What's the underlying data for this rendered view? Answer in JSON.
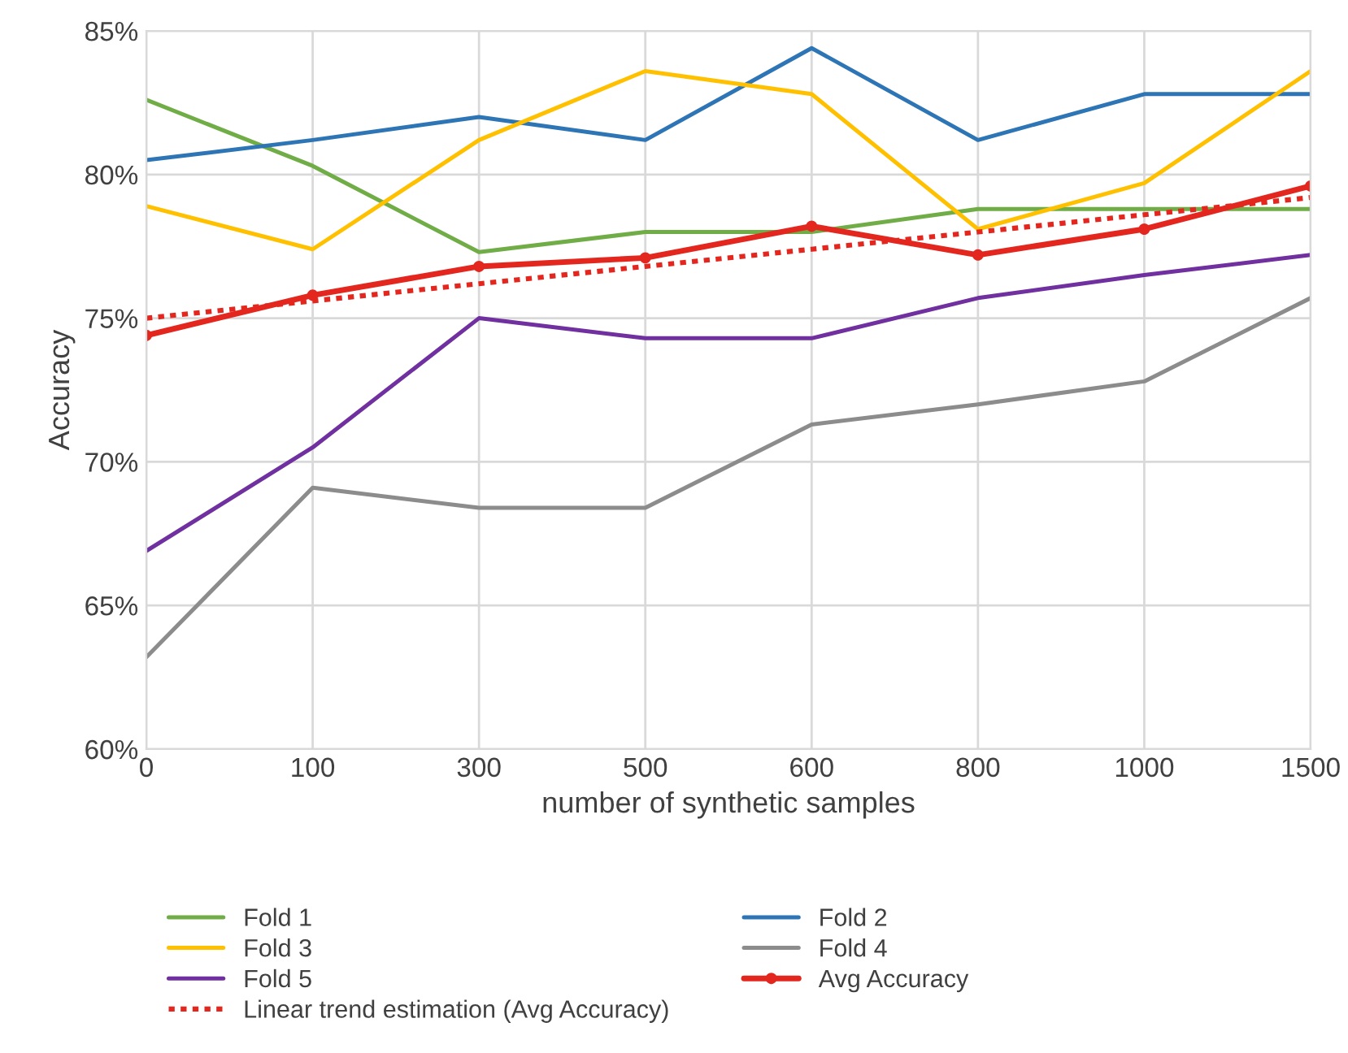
{
  "chart_data": {
    "type": "line",
    "xlabel": "number of synthetic samples",
    "ylabel": "Accuracy",
    "categories": [
      "0",
      "100",
      "300",
      "500",
      "600",
      "800",
      "1000",
      "1500"
    ],
    "ylim": [
      60,
      85
    ],
    "yticks": [
      {
        "value": 60,
        "label": "60%"
      },
      {
        "value": 65,
        "label": "65%"
      },
      {
        "value": 70,
        "label": "70%"
      },
      {
        "value": 75,
        "label": "75%"
      },
      {
        "value": 80,
        "label": "80%"
      },
      {
        "value": 85,
        "label": "85%"
      }
    ],
    "grid": true,
    "legend": "bottom",
    "marker": "none",
    "line_style": "solid",
    "series": [
      {
        "name": "Fold 1",
        "color": "#70ad47",
        "values": [
          82.6,
          80.3,
          77.3,
          78.0,
          78.0,
          78.8,
          78.8,
          78.8
        ]
      },
      {
        "name": "Fold 2",
        "color": "#2e75b6",
        "values": [
          80.5,
          81.2,
          82.0,
          81.2,
          84.4,
          81.2,
          82.8,
          82.8
        ]
      },
      {
        "name": "Fold 3",
        "color": "#ffc000",
        "values": [
          78.9,
          77.4,
          81.2,
          83.6,
          82.8,
          78.1,
          79.7,
          83.6
        ]
      },
      {
        "name": "Fold 4",
        "color": "#8c8c8c",
        "values": [
          63.2,
          69.1,
          68.4,
          68.4,
          71.3,
          72.0,
          72.8,
          75.7
        ]
      },
      {
        "name": "Fold 5",
        "color": "#7030a0",
        "values": [
          66.9,
          70.5,
          75.0,
          74.3,
          74.3,
          75.7,
          76.5,
          77.2
        ]
      },
      {
        "name": "Avg Accuracy",
        "color": "#e3271f",
        "marker": "circle",
        "values": [
          74.4,
          75.8,
          76.8,
          77.1,
          78.2,
          77.2,
          78.1,
          79.6
        ]
      },
      {
        "name": "Linear trend estimation (Avg Accuracy)",
        "color": "#e3271f",
        "line_style": "dotted",
        "values": [
          75.0,
          75.6,
          76.2,
          76.8,
          77.4,
          78.0,
          78.6,
          79.2
        ]
      }
    ]
  }
}
